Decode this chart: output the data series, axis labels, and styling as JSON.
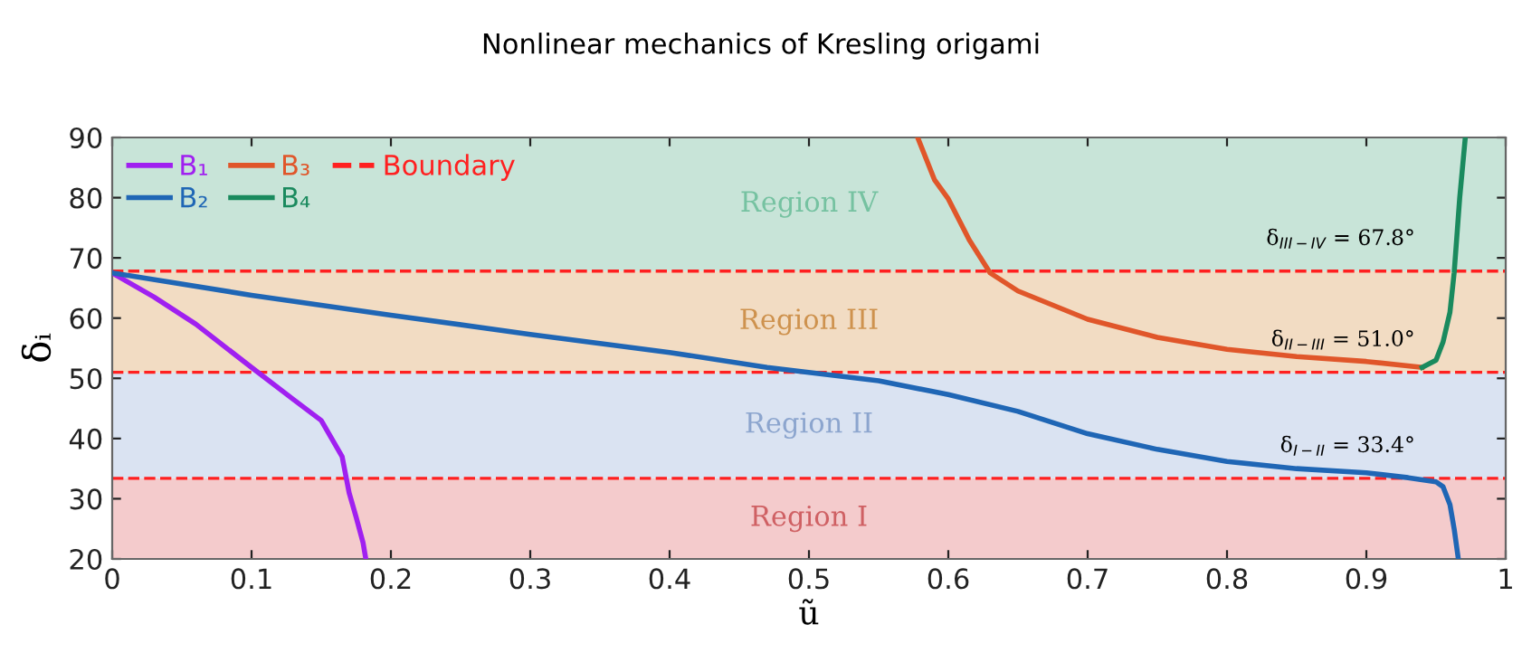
{
  "chart_data": {
    "type": "line",
    "title": "Nonlinear mechanics of Kresling origami",
    "xlabel": "ũ",
    "ylabel": "δᵢ",
    "xlim": [
      0,
      1
    ],
    "ylim": [
      20,
      90
    ],
    "xticks": [
      0,
      0.1,
      0.2,
      0.3,
      0.4,
      0.5,
      0.6,
      0.7,
      0.8,
      0.9,
      1
    ],
    "yticks": [
      20,
      30,
      40,
      50,
      60,
      70,
      80,
      90
    ],
    "grid": false,
    "legend": "top left",
    "line_style": "solid",
    "marker": "none",
    "series": [
      {
        "name": "B₁",
        "color": "#a020f0",
        "x": [
          0,
          0.03,
          0.06,
          0.1,
          0.13,
          0.15,
          0.165,
          0.17,
          0.175,
          0.18,
          0.182
        ],
        "values": [
          67.5,
          63.5,
          59,
          51.8,
          46.5,
          43,
          37,
          31,
          27,
          22.7,
          20
        ]
      },
      {
        "name": "B₂",
        "color": "#1f66b5",
        "x": [
          0,
          0.1,
          0.2,
          0.3,
          0.4,
          0.47,
          0.55,
          0.6,
          0.65,
          0.7,
          0.75,
          0.8,
          0.85,
          0.9,
          0.93,
          0.95,
          0.955,
          0.96,
          0.963,
          0.966
        ],
        "values": [
          67.5,
          63.8,
          60.5,
          57.3,
          54.3,
          51.8,
          49.6,
          47.3,
          44.5,
          40.8,
          38.2,
          36.2,
          35,
          34.3,
          33.5,
          32.8,
          32,
          29,
          25,
          20
        ]
      },
      {
        "name": "B₃",
        "color": "#e0562a",
        "x": [
          0.578,
          0.59,
          0.6,
          0.615,
          0.63,
          0.65,
          0.7,
          0.75,
          0.8,
          0.85,
          0.9,
          0.94
        ],
        "values": [
          90,
          83,
          79.8,
          73,
          67.5,
          64.5,
          59.8,
          56.8,
          54.8,
          53.6,
          52.8,
          51.8
        ]
      },
      {
        "name": "B₄",
        "color": "#1a8a5e",
        "x": [
          0.94,
          0.95,
          0.955,
          0.96,
          0.963,
          0.967,
          0.971
        ],
        "values": [
          51.8,
          53,
          56,
          61,
          67.5,
          80,
          90
        ]
      }
    ],
    "ref_lines": [
      {
        "axis": "y",
        "value": 67.8,
        "label": "δ$_{III−IV}$ = 67.8°",
        "color": "#ff2020",
        "line_style": "dashed"
      },
      {
        "axis": "y",
        "value": 51.0,
        "label": "δ$_{II−III}$ = 51.0°",
        "color": "#ff2020",
        "line_style": "dashed"
      },
      {
        "axis": "y",
        "value": 33.4,
        "label": "δ$_{I−II}$ = 33.4°",
        "color": "#ff2020",
        "line_style": "dashed"
      }
    ],
    "bands": [
      {
        "axis": "y",
        "from": 20,
        "to": 33.4,
        "label": "Region I",
        "color": "#f4cbcc"
      },
      {
        "axis": "y",
        "from": 33.4,
        "to": 51.0,
        "label": "Region II",
        "color": "#dae3f2"
      },
      {
        "axis": "y",
        "from": 51.0,
        "to": 67.8,
        "label": "Region III",
        "color": "#f2dcc3"
      },
      {
        "axis": "y",
        "from": 67.8,
        "to": 90,
        "label": "Region IV",
        "color": "#c8e4d8"
      }
    ],
    "annotations": [
      "Boundary"
    ]
  }
}
